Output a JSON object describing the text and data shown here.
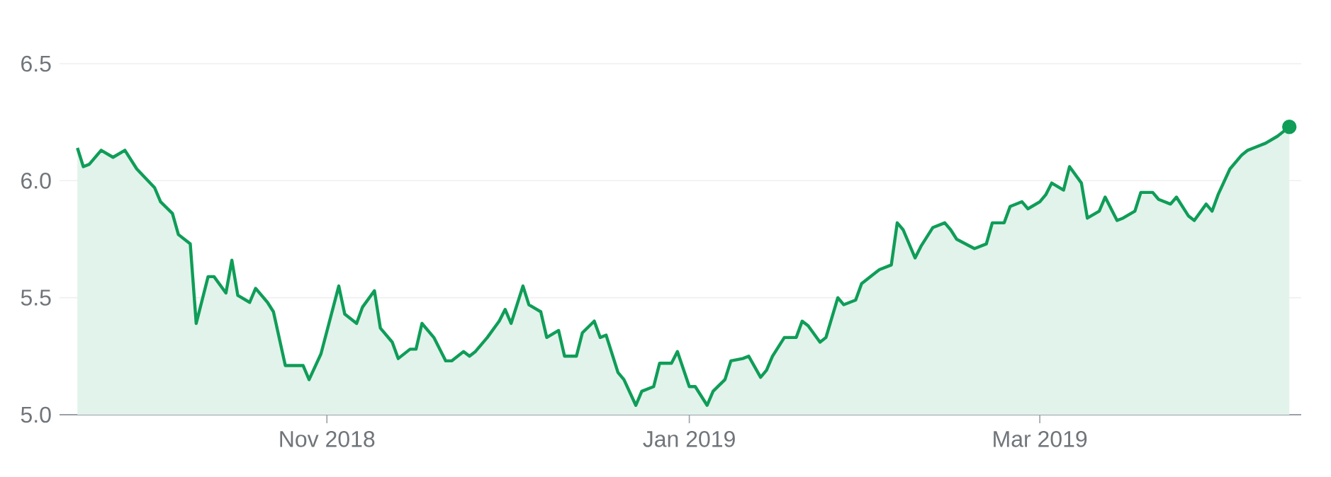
{
  "chart_data": {
    "type": "area",
    "color": "#0f9d58",
    "x": [
      "2018-09-20",
      "2018-09-21",
      "2018-09-22",
      "2018-09-24",
      "2018-09-26",
      "2018-09-28",
      "2018-09-30",
      "2018-10-03",
      "2018-10-04",
      "2018-10-06",
      "2018-10-07",
      "2018-10-09",
      "2018-10-10",
      "2018-10-12",
      "2018-10-13",
      "2018-10-15",
      "2018-10-16",
      "2018-10-17",
      "2018-10-19",
      "2018-10-20",
      "2018-10-22",
      "2018-10-23",
      "2018-10-25",
      "2018-10-28",
      "2018-10-29",
      "2018-10-31",
      "2018-11-03",
      "2018-11-04",
      "2018-11-06",
      "2018-11-07",
      "2018-11-09",
      "2018-11-10",
      "2018-11-12",
      "2018-11-13",
      "2018-11-15",
      "2018-11-16",
      "2018-11-17",
      "2018-11-19",
      "2018-11-21",
      "2018-11-22",
      "2018-11-24",
      "2018-11-25",
      "2018-11-26",
      "2018-11-28",
      "2018-11-30",
      "2018-12-01",
      "2018-12-02",
      "2018-12-04",
      "2018-12-05",
      "2018-12-07",
      "2018-12-08",
      "2018-12-10",
      "2018-12-11",
      "2018-12-13",
      "2018-12-14",
      "2018-12-16",
      "2018-12-17",
      "2018-12-18",
      "2018-12-20",
      "2018-12-21",
      "2018-12-23",
      "2018-12-24",
      "2018-12-26",
      "2018-12-27",
      "2018-12-29",
      "2018-12-30",
      "2019-01-01",
      "2019-01-02",
      "2019-01-04",
      "2019-01-05",
      "2019-01-07",
      "2019-01-08",
      "2019-01-10",
      "2019-01-11",
      "2019-01-13",
      "2019-01-14",
      "2019-01-15",
      "2019-01-17",
      "2019-01-19",
      "2019-01-20",
      "2019-01-21",
      "2019-01-23",
      "2019-01-24",
      "2019-01-26",
      "2019-01-27",
      "2019-01-29",
      "2019-01-30",
      "2019-02-01",
      "2019-02-02",
      "2019-02-04",
      "2019-02-05",
      "2019-02-06",
      "2019-02-08",
      "2019-02-09",
      "2019-02-11",
      "2019-02-13",
      "2019-02-14",
      "2019-02-15",
      "2019-02-18",
      "2019-02-20",
      "2019-02-21",
      "2019-02-23",
      "2019-02-24",
      "2019-02-26",
      "2019-02-27",
      "2019-03-01",
      "2019-03-02",
      "2019-03-03",
      "2019-03-05",
      "2019-03-06",
      "2019-03-08",
      "2019-03-09",
      "2019-03-11",
      "2019-03-12",
      "2019-03-14",
      "2019-03-15",
      "2019-03-17",
      "2019-03-18",
      "2019-03-20",
      "2019-03-21",
      "2019-03-23",
      "2019-03-24",
      "2019-03-26",
      "2019-03-27",
      "2019-03-29",
      "2019-03-30",
      "2019-03-31",
      "2019-04-02",
      "2019-04-04",
      "2019-04-05",
      "2019-04-06",
      "2019-04-08",
      "2019-04-10",
      "2019-04-11",
      "2019-04-12"
    ],
    "values": [
      6.14,
      6.06,
      6.07,
      6.13,
      6.1,
      6.13,
      6.05,
      5.97,
      5.91,
      5.86,
      5.77,
      5.73,
      5.39,
      5.59,
      5.59,
      5.52,
      5.66,
      5.51,
      5.48,
      5.54,
      5.48,
      5.44,
      5.21,
      5.21,
      5.15,
      5.26,
      5.55,
      5.43,
      5.39,
      5.46,
      5.53,
      5.37,
      5.31,
      5.24,
      5.28,
      5.28,
      5.39,
      5.33,
      5.23,
      5.23,
      5.27,
      5.25,
      5.27,
      5.33,
      5.4,
      5.45,
      5.39,
      5.55,
      5.47,
      5.44,
      5.33,
      5.36,
      5.25,
      5.25,
      5.35,
      5.4,
      5.33,
      5.34,
      5.18,
      5.15,
      5.04,
      5.1,
      5.12,
      5.22,
      5.22,
      5.27,
      5.12,
      5.12,
      5.04,
      5.1,
      5.15,
      5.23,
      5.24,
      5.25,
      5.16,
      5.19,
      5.25,
      5.33,
      5.33,
      5.4,
      5.38,
      5.31,
      5.33,
      5.5,
      5.47,
      5.49,
      5.56,
      5.6,
      5.62,
      5.64,
      5.82,
      5.79,
      5.67,
      5.72,
      5.8,
      5.82,
      5.79,
      5.75,
      5.71,
      5.73,
      5.82,
      5.82,
      5.89,
      5.91,
      5.88,
      5.91,
      5.94,
      5.99,
      5.96,
      6.06,
      5.99,
      5.84,
      5.87,
      5.93,
      5.83,
      5.84,
      5.87,
      5.95,
      5.95,
      5.92,
      5.9,
      5.93,
      5.85,
      5.83,
      5.9,
      5.87,
      5.94,
      6.05,
      6.11,
      6.13,
      6.14,
      6.16,
      6.19,
      6.21,
      6.23
    ],
    "xlim": [
      "2018-09-17",
      "2019-04-14"
    ],
    "xticks": [
      {
        "value": "2018-11-01",
        "label": "Nov 2018"
      },
      {
        "value": "2019-01-01",
        "label": "Jan 2019"
      },
      {
        "value": "2019-03-01",
        "label": "Mar 2019"
      }
    ],
    "ylim": [
      5.0,
      6.5
    ],
    "yticks": [
      {
        "value": 5.0,
        "label": "5.0"
      },
      {
        "value": 5.5,
        "label": "5.5"
      },
      {
        "value": 6.0,
        "label": "6.0"
      },
      {
        "value": 6.5,
        "label": "6.5"
      }
    ],
    "grid": "y"
  }
}
